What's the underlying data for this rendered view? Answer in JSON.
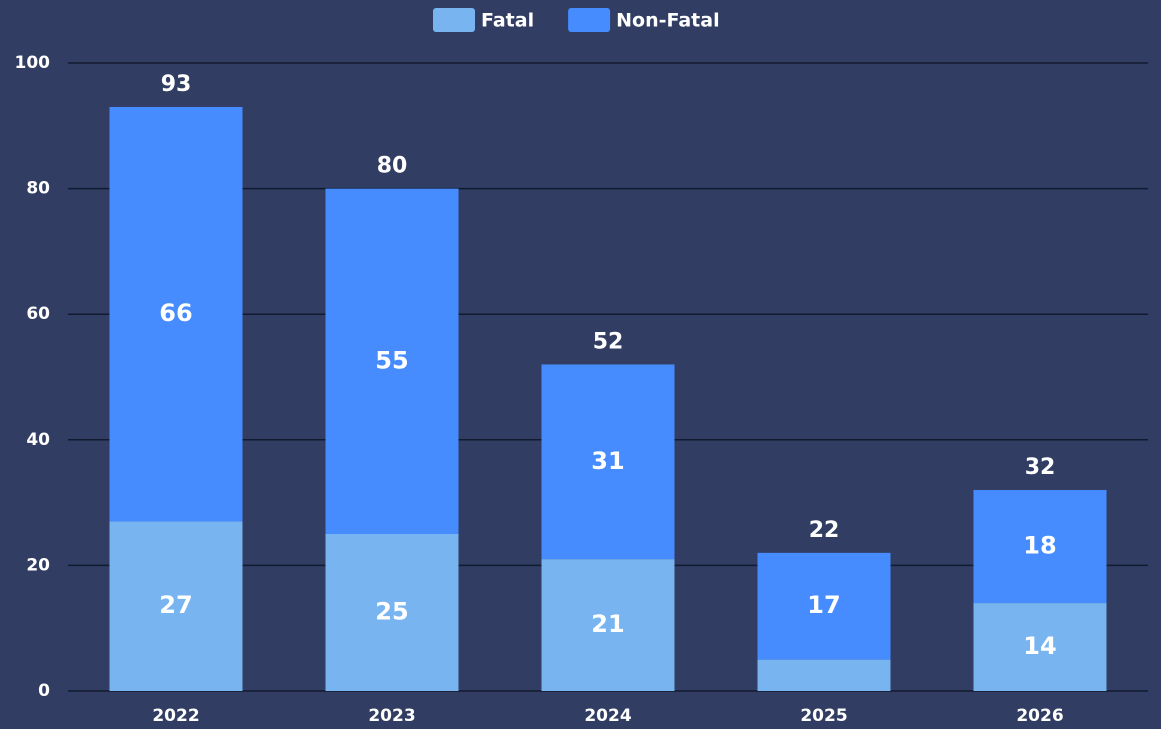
{
  "chart_data": {
    "type": "stacked_bar",
    "categories": [
      "2022",
      "2023",
      "2024",
      "2025",
      "2026"
    ],
    "series": [
      {
        "name": "Fatal",
        "color": "#78b4f0",
        "values": [
          27,
          25,
          21,
          5,
          14
        ],
        "value_labels": [
          "27",
          "25",
          "21",
          null,
          "14"
        ]
      },
      {
        "name": "Non-Fatal",
        "color": "#468cff",
        "values": [
          66,
          55,
          31,
          17,
          18
        ]
      }
    ],
    "totals": [
      93,
      80,
      52,
      22,
      32
    ],
    "ylim": [
      0,
      100
    ],
    "yticks": [
      0,
      20,
      40,
      60,
      80,
      100
    ],
    "grid": true,
    "legend": "top"
  }
}
